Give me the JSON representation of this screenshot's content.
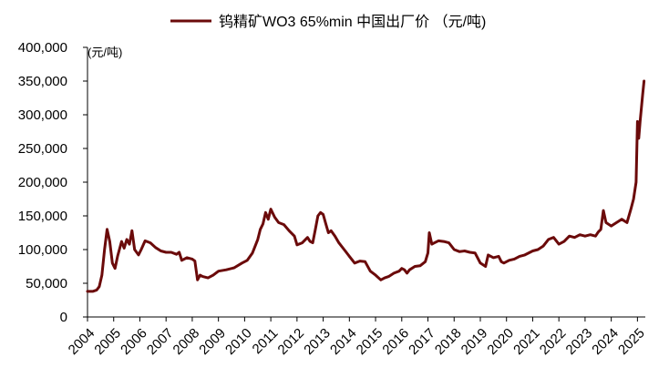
{
  "chart_data": {
    "type": "line",
    "unit_label": "(元/吨)",
    "ylim": [
      0,
      400000
    ],
    "y_ticks": [
      0,
      50000,
      100000,
      150000,
      200000,
      250000,
      300000,
      350000,
      400000
    ],
    "y_tick_labels": [
      "0",
      "50,000",
      "100,000",
      "150,000",
      "200,000",
      "250,000",
      "300,000",
      "350,000",
      "400,000"
    ],
    "x_ticks": [
      "2004",
      "2005",
      "2006",
      "2007",
      "2008",
      "2009",
      "2010",
      "2011",
      "2012",
      "2013",
      "2014",
      "2015",
      "2016",
      "2017",
      "2018",
      "2019",
      "2020",
      "2021",
      "2022",
      "2023",
      "2024",
      "2025"
    ],
    "xlim": [
      2004.0,
      2025.3
    ],
    "grid": false,
    "legend_position": "top-center",
    "series": [
      {
        "name": "钨精矿WO3 65%min 中国出厂价 （元/吨)",
        "color": "#6b0a0a",
        "x": [
          2004.0,
          2004.2,
          2004.35,
          2004.45,
          2004.55,
          2004.65,
          2004.75,
          2004.85,
          2004.95,
          2005.05,
          2005.15,
          2005.3,
          2005.4,
          2005.5,
          2005.6,
          2005.7,
          2005.8,
          2005.95,
          2006.05,
          2006.2,
          2006.4,
          2006.6,
          2006.8,
          2007.0,
          2007.2,
          2007.4,
          2007.5,
          2007.6,
          2007.8,
          2008.0,
          2008.1,
          2008.2,
          2008.3,
          2008.4,
          2008.6,
          2008.8,
          2009.0,
          2009.3,
          2009.6,
          2009.9,
          2010.1,
          2010.3,
          2010.5,
          2010.6,
          2010.7,
          2010.8,
          2010.9,
          2011.0,
          2011.15,
          2011.3,
          2011.5,
          2011.7,
          2011.9,
          2012.0,
          2012.2,
          2012.4,
          2012.5,
          2012.6,
          2012.7,
          2012.8,
          2012.9,
          2013.0,
          2013.1,
          2013.2,
          2013.3,
          2013.45,
          2013.6,
          2013.8,
          2014.0,
          2014.2,
          2014.4,
          2014.6,
          2014.8,
          2015.0,
          2015.2,
          2015.35,
          2015.5,
          2015.7,
          2015.9,
          2016.0,
          2016.1,
          2016.2,
          2016.3,
          2016.5,
          2016.7,
          2016.9,
          2017.0,
          2017.05,
          2017.15,
          2017.25,
          2017.4,
          2017.6,
          2017.8,
          2018.0,
          2018.2,
          2018.4,
          2018.6,
          2018.8,
          2019.0,
          2019.2,
          2019.3,
          2019.5,
          2019.7,
          2019.8,
          2019.9,
          2020.1,
          2020.3,
          2020.5,
          2020.7,
          2021.0,
          2021.2,
          2021.4,
          2021.6,
          2021.8,
          2022.0,
          2022.2,
          2022.4,
          2022.6,
          2022.8,
          2023.0,
          2023.2,
          2023.4,
          2023.5,
          2023.6,
          2023.7,
          2023.8,
          2024.0,
          2024.2,
          2024.4,
          2024.6,
          2024.75,
          2024.85,
          2024.95,
          2025.0,
          2025.05,
          2025.1,
          2025.15,
          2025.2,
          2025.25
        ],
        "y": [
          38000,
          38000,
          40000,
          45000,
          62000,
          100000,
          130000,
          112000,
          80000,
          72000,
          90000,
          112000,
          102000,
          115000,
          108000,
          128000,
          100000,
          92000,
          100000,
          113000,
          110000,
          103000,
          98000,
          96000,
          96000,
          93000,
          96000,
          84000,
          88000,
          86000,
          83000,
          55000,
          62000,
          60000,
          58000,
          62000,
          68000,
          70000,
          73000,
          80000,
          84000,
          95000,
          115000,
          130000,
          138000,
          155000,
          145000,
          160000,
          148000,
          140000,
          137000,
          128000,
          120000,
          107000,
          110000,
          118000,
          112000,
          110000,
          130000,
          150000,
          155000,
          152000,
          138000,
          125000,
          128000,
          120000,
          110000,
          100000,
          90000,
          80000,
          83000,
          82000,
          68000,
          62000,
          55000,
          58000,
          60000,
          65000,
          68000,
          72000,
          70000,
          65000,
          70000,
          75000,
          76000,
          82000,
          95000,
          125000,
          108000,
          110000,
          113000,
          112000,
          110000,
          100000,
          97000,
          98000,
          96000,
          95000,
          80000,
          75000,
          92000,
          88000,
          90000,
          82000,
          80000,
          84000,
          86000,
          90000,
          92000,
          98000,
          100000,
          105000,
          115000,
          118000,
          108000,
          112000,
          120000,
          118000,
          122000,
          120000,
          122000,
          120000,
          126000,
          130000,
          158000,
          140000,
          135000,
          140000,
          145000,
          140000,
          160000,
          175000,
          200000,
          290000,
          265000,
          290000,
          310000,
          330000,
          350000
        ]
      }
    ]
  }
}
